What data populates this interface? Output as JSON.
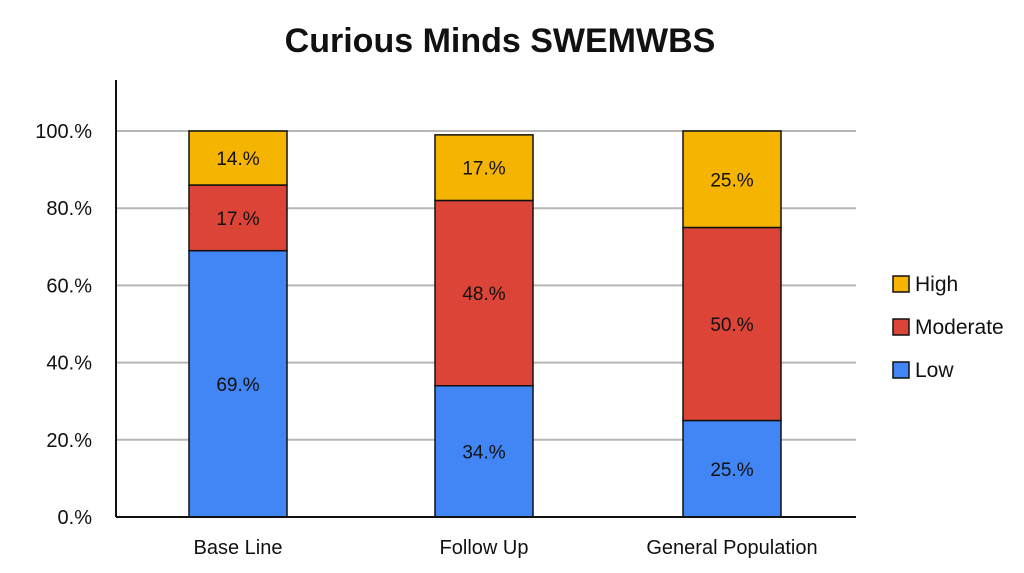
{
  "chart_data": {
    "type": "bar",
    "stacked": true,
    "title": "Curious Minds SWEMWBS",
    "xlabel": "",
    "ylabel": "",
    "ylim": [
      0,
      100
    ],
    "yticks": [
      0,
      20,
      40,
      60,
      80,
      100
    ],
    "ytick_labels": [
      "0.%",
      "20.%",
      "40.%",
      "60.%",
      "80.%",
      "100.%"
    ],
    "categories": [
      "Base Line",
      "Follow Up",
      "General Population"
    ],
    "series": [
      {
        "name": "Low",
        "color": "#4285F4",
        "values": [
          69,
          34,
          25
        ],
        "labels": [
          "69.%",
          "34.%",
          "25.%"
        ]
      },
      {
        "name": "Moderate",
        "color": "#DB4437",
        "values": [
          17,
          48,
          50
        ],
        "labels": [
          "17.%",
          "48.%",
          "50.%"
        ]
      },
      {
        "name": "High",
        "color": "#F4B400",
        "values": [
          14,
          17,
          25
        ],
        "labels": [
          "14.%",
          "17.%",
          "25.%"
        ]
      }
    ],
    "legend": {
      "position": "right",
      "order": [
        "High",
        "Moderate",
        "Low"
      ]
    },
    "grid": true
  }
}
